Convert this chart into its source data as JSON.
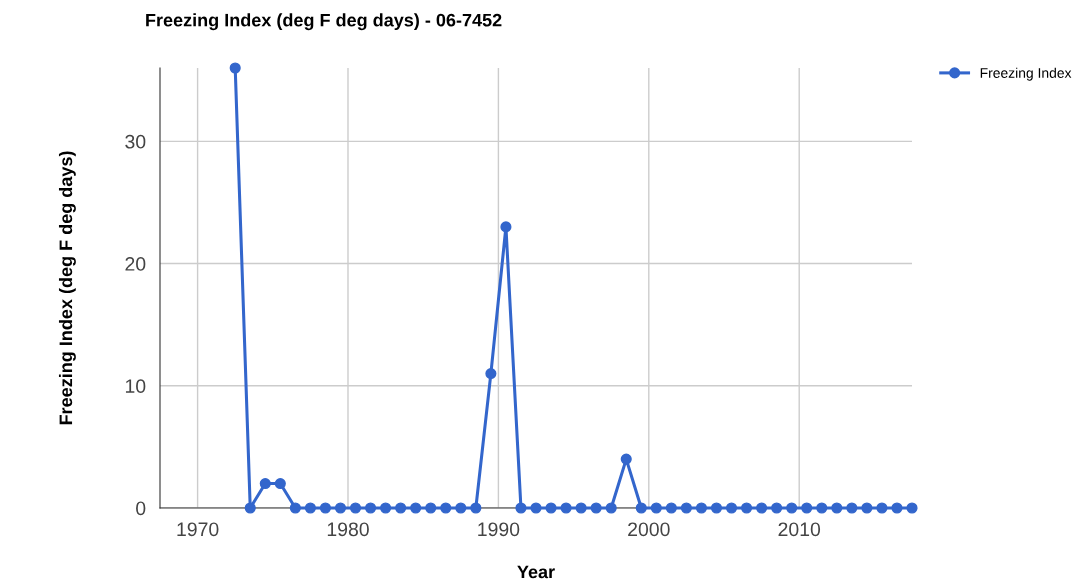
{
  "chart_data": {
    "type": "line",
    "title": "Freezing Index (deg F deg days) - 06-7452",
    "xlabel": "Year",
    "ylabel": "Freezing Index (deg F deg days)",
    "x": [
      1972.5,
      1973.5,
      1974.5,
      1975.5,
      1976.5,
      1977.5,
      1978.5,
      1979.5,
      1980.5,
      1981.5,
      1982.5,
      1983.5,
      1984.5,
      1985.5,
      1986.5,
      1987.5,
      1988.5,
      1989.5,
      1990.5,
      1991.5,
      1992.5,
      1993.5,
      1994.5,
      1995.5,
      1996.5,
      1997.5,
      1998.5,
      1999.5,
      2000.5,
      2001.5,
      2002.5,
      2003.5,
      2004.5,
      2005.5,
      2006.5,
      2007.5,
      2008.5,
      2009.5,
      2010.5,
      2011.5,
      2012.5,
      2013.5,
      2014.5,
      2015.5,
      2016.5,
      2017.5
    ],
    "series": [
      {
        "name": "Freezing Index",
        "color": "#3366cc",
        "values": [
          36,
          0,
          2,
          2,
          0,
          0,
          0,
          0,
          0,
          0,
          0,
          0,
          0,
          0,
          0,
          0,
          0,
          11,
          23,
          0,
          0,
          0,
          0,
          0,
          0,
          0,
          4,
          0,
          0,
          0,
          0,
          0,
          0,
          0,
          0,
          0,
          0,
          0,
          0,
          0,
          0,
          0,
          0,
          0,
          0,
          0
        ]
      }
    ],
    "xlim": [
      1967.5,
      2017.5
    ],
    "xticks": [
      1970,
      1980,
      1990,
      2000,
      2010
    ],
    "ylim": [
      0,
      36
    ],
    "yticks": [
      0,
      10,
      20,
      30
    ],
    "grid": true,
    "legend": "top right",
    "marker": "circle",
    "line_style": "solid"
  }
}
